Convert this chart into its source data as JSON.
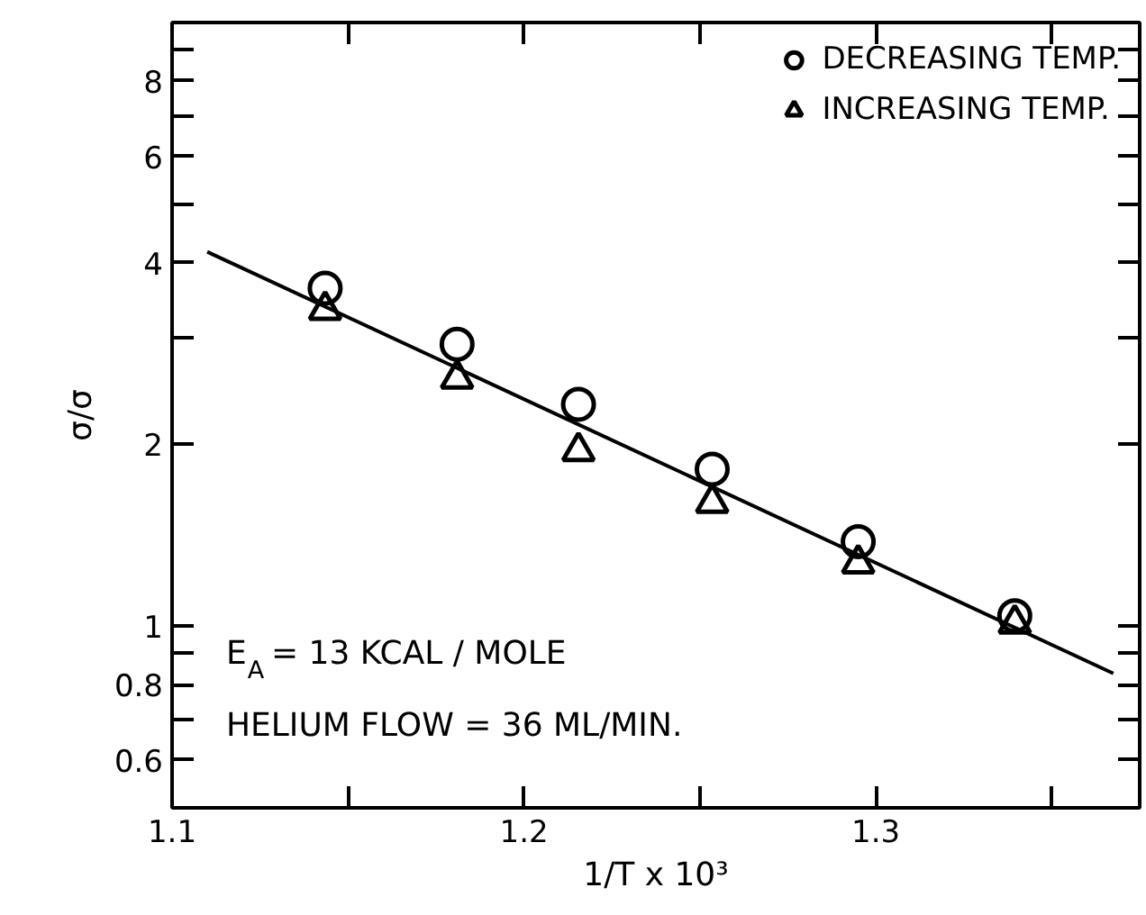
{
  "chart_data": {
    "type": "scatter",
    "xlabel": "1/T x 10³",
    "ylabel": "σ/σ",
    "log": "y",
    "xlim": [
      1.1,
      1.375
    ],
    "xticks": [
      1.1,
      {
        "value": 1.15,
        "label": null
      },
      1.2,
      {
        "value": 1.25,
        "label": null
      },
      1.3,
      {
        "value": 1.35,
        "label": null
      }
    ],
    "ylim": [
      0.5,
      10
    ],
    "yticks": [
      {
        "value": 0.5,
        "label": null
      },
      0.6,
      {
        "value": 0.7,
        "label": null
      },
      0.8,
      {
        "value": 0.9,
        "label": null
      },
      1,
      2,
      {
        "value": 3,
        "label": null
      },
      4,
      {
        "value": 5,
        "label": null
      },
      6,
      {
        "value": 7,
        "label": null
      },
      8,
      {
        "value": 9,
        "label": null
      }
    ],
    "legend": "top right",
    "series": [
      {
        "name": "DECREASING TEMP.",
        "color": "#000000",
        "marker": "circle",
        "x": [
          1.1435,
          1.181,
          1.2155,
          1.2535,
          1.295,
          1.3395
        ],
        "values": [
          3.63,
          2.93,
          2.33,
          1.82,
          1.38,
          1.04
        ]
      },
      {
        "name": "INCREASING TEMP.",
        "color": "#000000",
        "marker": "triangle",
        "x": [
          1.1435,
          1.181,
          1.2155,
          1.2535,
          1.295,
          1.3395
        ],
        "values": [
          3.34,
          2.57,
          1.95,
          1.6,
          1.27,
          1.01
        ]
      },
      {
        "type": "line",
        "color": "#000000",
        "line_style": "solid",
        "marker": "none",
        "x": [
          1.11,
          1.3675
        ],
        "values": [
          4.17,
          0.835
        ]
      }
    ],
    "annotations": [
      "E$_{A}$ = 13 KCAL / MOLE",
      "HELIUM FLOW = 36 ML/MIN."
    ]
  }
}
